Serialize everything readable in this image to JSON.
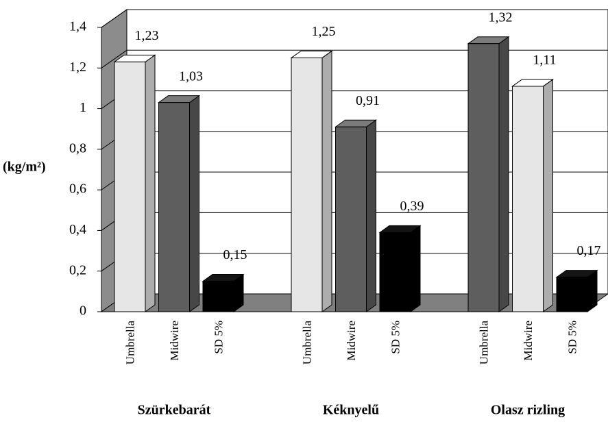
{
  "chart_data": {
    "type": "bar3d",
    "y_label": "(kg/m²)",
    "ylim": [
      0,
      1.4
    ],
    "yticks": [
      0,
      {
        "value": 0.2,
        "label": "0,2"
      },
      {
        "value": 0.4,
        "label": "0,4"
      },
      {
        "value": 0.6,
        "label": "0,6"
      },
      {
        "value": 0.8,
        "label": "0,8"
      },
      1,
      {
        "value": 1.2,
        "label": "1,2"
      },
      {
        "value": 1.4,
        "label": "1,4"
      }
    ],
    "grid": true,
    "groups": [
      {
        "name": "Szürkebarát",
        "categories": [
          "Umbrella",
          "Midwire",
          "SD 5%"
        ],
        "values": [
          1.23,
          1.03,
          0.15
        ],
        "value_labels": [
          "1,23",
          "1,03",
          "0,15"
        ],
        "colors": [
          "#e6e6e6",
          "#5e5e5e",
          "#000000"
        ]
      },
      {
        "name": "Kéknyelű",
        "categories": [
          "Umbrella",
          "Midwire",
          "SD 5%"
        ],
        "values": [
          1.25,
          0.91,
          0.39
        ],
        "value_labels": [
          "1,25",
          "0,91",
          "0,39"
        ],
        "colors": [
          "#e6e6e6",
          "#5e5e5e",
          "#000000"
        ]
      },
      {
        "name": "Olasz rizling",
        "categories": [
          "Umbrella",
          "Midwire",
          "SD 5%"
        ],
        "values": [
          1.32,
          1.11,
          0.17
        ],
        "value_labels": [
          "1,32",
          "1,11",
          "0,17"
        ],
        "colors": [
          "#5e5e5e",
          "#e6e6e6",
          "#000000"
        ]
      }
    ]
  }
}
